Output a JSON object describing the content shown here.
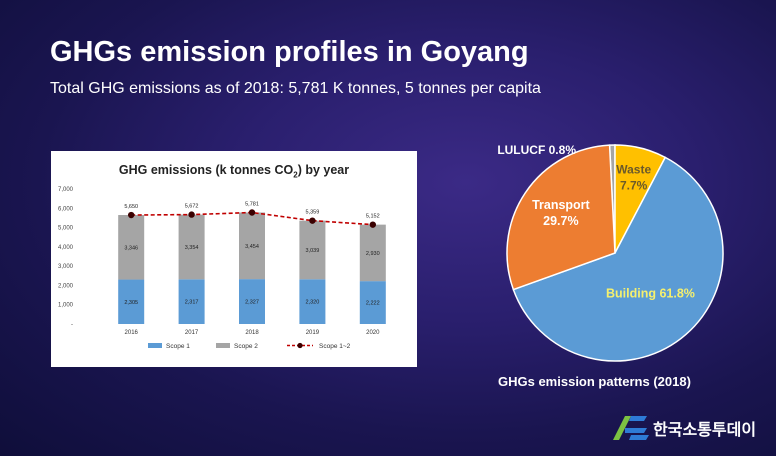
{
  "header": {
    "title": "GHGs emission profiles in Goyang",
    "subtitle": "Total GHG emissions as of 2018: 5,781 K tonnes, 5 tonnes per capita"
  },
  "chart_data": [
    {
      "type": "bar",
      "stacked": true,
      "title_prefix": "GHG emissions (k tonnes CO",
      "title_sub": "2",
      "title_suffix": ") by year",
      "categories": [
        "2016",
        "2017",
        "2018",
        "2019",
        "2020"
      ],
      "series": [
        {
          "name": "Scope 1",
          "kind": "bar",
          "color": "#5b9bd5",
          "values": [
            2305,
            2317,
            2327,
            2320,
            2222
          ],
          "labels": [
            "2,305",
            "2,317",
            "2,327",
            "2,320",
            "2,222"
          ]
        },
        {
          "name": "Scope 2",
          "kind": "bar",
          "color": "#a5a5a5",
          "values": [
            3346,
            3354,
            3454,
            3039,
            2930
          ],
          "labels": [
            "3,346",
            "3,354",
            "3,454",
            "3,039",
            "2,930"
          ]
        },
        {
          "name": "Scope 1~2",
          "kind": "line",
          "color": "#c00000",
          "marker_color": "#3a0000",
          "values": [
            5650,
            5672,
            5781,
            5359,
            5152
          ],
          "labels": [
            "5,650",
            "5,672",
            "5,781",
            "5,359",
            "5,152"
          ]
        }
      ],
      "yticks": [
        "-",
        "1,000",
        "2,000",
        "3,000",
        "4,000",
        "5,000",
        "6,000",
        "7,000"
      ],
      "ylim": [
        0,
        7000
      ],
      "legend_position": "bottom"
    },
    {
      "type": "pie",
      "caption": "GHGs emission patterns (2018)",
      "slices": [
        {
          "name": "Building",
          "value": 61.8,
          "label": "Building 61.8%",
          "color": "#5b9bd5",
          "label_color": "#f5f06e"
        },
        {
          "name": "Transport",
          "value": 29.7,
          "label_line1": "Transport",
          "label_line2": "29.7%",
          "color": "#ed7d31",
          "label_color": "#ffffff"
        },
        {
          "name": "LULUCF",
          "value": 0.8,
          "label": "LULUCF 0.8%",
          "color": "#a5a5a5",
          "label_color": "#ffffff"
        },
        {
          "name": "Waste",
          "value": 7.7,
          "label_line1": "Waste",
          "label_line2": "7.7%",
          "color": "#ffc000",
          "label_color": "#6b5a2a"
        }
      ]
    }
  ],
  "brand": {
    "name": "한국소통투데이"
  },
  "colors": {
    "accent_green": "#7cc242",
    "accent_blue": "#2e7bd6"
  }
}
